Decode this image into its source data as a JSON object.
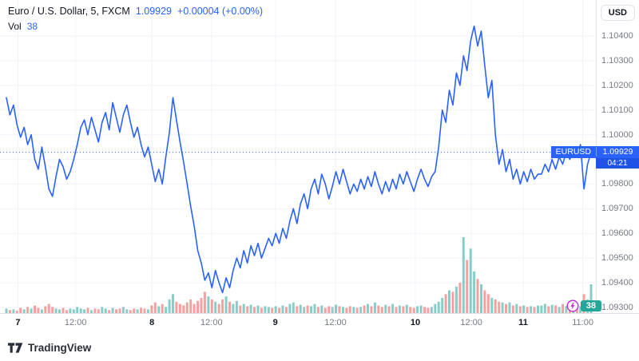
{
  "header": {
    "title": "Euro / U.S. Dollar, 5, FXCM",
    "price": "1.09929",
    "change": "+0.00004 (+0.00%)",
    "vol_label": "Vol",
    "vol_value": "38",
    "currency_button": "USD"
  },
  "price_scale": {
    "label": {
      "symbol": "EURUSD",
      "price": "1.09929",
      "countdown": "04:21"
    }
  },
  "volume_badge": {
    "value": "38"
  },
  "footer": {
    "brand": "TradingView"
  },
  "colors": {
    "accent": "#2962ff",
    "line": "#2962ff",
    "grid": "#f0f3fa",
    "axis_text": "#787b86",
    "text": "#131722",
    "vol_up": "rgba(38,166,154,0.55)",
    "vol_down": "rgba(239,83,80,0.55)",
    "volume_value_green": "#26a69a",
    "flash_icon_purple": "#c026d3",
    "label_blue": "#2962ff",
    "countdown_blue": "#1e53e5"
  },
  "chart_data": {
    "type": "line",
    "title": "Euro / U.S. Dollar, 5, FXCM",
    "xlabel": "",
    "ylabel": "",
    "legend_position": "top-left",
    "grid": true,
    "ylim": [
      1.09277,
      1.10546
    ],
    "y_ticks": [
      1.104,
      1.103,
      1.102,
      1.101,
      1.1,
      1.099,
      1.098,
      1.097,
      1.096,
      1.095,
      1.094,
      1.093
    ],
    "x_ticks": [
      {
        "label": "7",
        "pos": 0.03,
        "major": true
      },
      {
        "label": "12:00",
        "pos": 0.127,
        "major": false
      },
      {
        "label": "8",
        "pos": 0.255,
        "major": true
      },
      {
        "label": "12:00",
        "pos": 0.355,
        "major": false
      },
      {
        "label": "9",
        "pos": 0.462,
        "major": true
      },
      {
        "label": "12:00",
        "pos": 0.563,
        "major": false
      },
      {
        "label": "10",
        "pos": 0.697,
        "major": true
      },
      {
        "label": "12:00",
        "pos": 0.791,
        "major": false
      },
      {
        "label": "11",
        "pos": 0.878,
        "major": true
      },
      {
        "label": "11:00",
        "pos": 0.978,
        "major": false
      }
    ],
    "last_price": 1.09929,
    "prices": [
      1.1015,
      1.1008,
      1.1012,
      1.1004,
      1.0999,
      1.1003,
      1.0996,
      1.1,
      1.099,
      1.0986,
      1.0995,
      1.0987,
      1.0978,
      1.0975,
      1.0983,
      1.099,
      1.0987,
      1.0982,
      1.0985,
      1.099,
      1.0996,
      1.1003,
      1.1006,
      1.1,
      1.1007,
      1.1002,
      1.0997,
      1.1005,
      1.1009,
      1.1002,
      1.1013,
      1.1007,
      1.1001,
      1.1008,
      1.1012,
      1.1005,
      1.0999,
      1.1003,
      1.0996,
      1.0991,
      1.0995,
      1.0988,
      1.0981,
      1.0986,
      1.098,
      1.0991,
      1.1001,
      1.1015,
      1.1006,
      1.0997,
      1.0989,
      1.098,
      1.0971,
      1.0963,
      1.0953,
      1.0948,
      1.0941,
      1.0944,
      1.0938,
      1.0945,
      1.094,
      1.0936,
      1.0942,
      1.0938,
      1.0945,
      1.095,
      1.0946,
      1.0953,
      1.0948,
      1.0955,
      1.0951,
      1.0956,
      1.095,
      1.0954,
      1.0958,
      1.0955,
      1.096,
      1.0956,
      1.0962,
      1.0958,
      1.0965,
      1.097,
      1.0964,
      1.0972,
      1.0976,
      1.097,
      1.0978,
      1.0982,
      1.0976,
      1.0984,
      1.098,
      1.0974,
      1.0979,
      1.0985,
      1.098,
      1.0986,
      1.0981,
      1.0976,
      1.098,
      1.0977,
      1.0982,
      1.0978,
      1.0983,
      1.0979,
      1.0985,
      1.098,
      1.0976,
      1.0981,
      1.0977,
      1.0982,
      1.0978,
      1.0984,
      1.098,
      1.0985,
      1.0981,
      1.0977,
      1.0982,
      1.0986,
      1.0982,
      1.0979,
      1.0983,
      1.0985,
      1.0995,
      1.101,
      1.1005,
      1.1018,
      1.1012,
      1.1025,
      1.102,
      1.1032,
      1.1026,
      1.1038,
      1.1044,
      1.1036,
      1.1042,
      1.1028,
      1.1015,
      1.1022,
      1.1,
      1.0988,
      1.0994,
      1.0985,
      1.099,
      1.0982,
      1.0986,
      1.098,
      1.0985,
      1.0981,
      1.0986,
      1.0982,
      1.0984,
      1.0984,
      1.0988,
      1.0985,
      1.099,
      1.0986,
      1.0991,
      1.0988,
      1.0993,
      1.099,
      1.0995,
      1.0991,
      1.0996,
      1.0978,
      1.0988,
      1.09929
    ],
    "volumes": [
      6,
      4,
      5,
      3,
      7,
      5,
      8,
      6,
      10,
      7,
      5,
      9,
      12,
      8,
      6,
      5,
      7,
      4,
      6,
      5,
      8,
      6,
      5,
      7,
      4,
      6,
      5,
      8,
      6,
      4,
      7,
      5,
      6,
      8,
      5,
      4,
      6,
      5,
      7,
      6,
      5,
      10,
      14,
      9,
      12,
      8,
      18,
      25,
      15,
      12,
      10,
      14,
      18,
      12,
      16,
      20,
      28,
      22,
      18,
      15,
      12,
      18,
      22,
      15,
      12,
      16,
      10,
      12,
      9,
      11,
      8,
      10,
      7,
      9,
      8,
      7,
      9,
      7,
      10,
      8,
      12,
      14,
      9,
      11,
      8,
      10,
      9,
      12,
      8,
      10,
      7,
      9,
      8,
      11,
      9,
      8,
      7,
      9,
      8,
      7,
      8,
      10,
      12,
      9,
      14,
      10,
      8,
      11,
      9,
      12,
      8,
      10,
      9,
      11,
      8,
      7,
      9,
      10,
      8,
      7,
      8,
      12,
      15,
      20,
      25,
      30,
      28,
      35,
      40,
      100,
      70,
      85,
      55,
      45,
      38,
      30,
      25,
      20,
      18,
      15,
      14,
      12,
      14,
      10,
      12,
      9,
      10,
      8,
      9,
      8,
      10,
      10,
      12,
      9,
      11,
      10,
      8,
      12,
      9,
      14,
      10,
      12,
      9,
      25,
      18,
      38
    ]
  }
}
